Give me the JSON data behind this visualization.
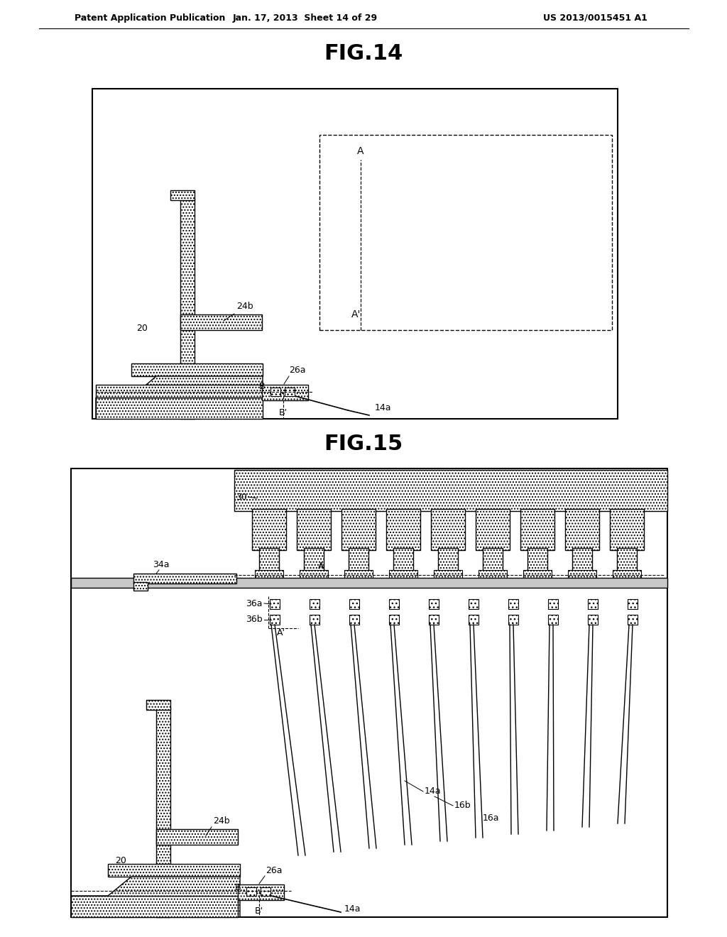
{
  "page_header_left": "Patent Application Publication",
  "page_header_mid": "Jan. 17, 2013  Sheet 14 of 29",
  "page_header_right": "US 2013/0015451 A1",
  "fig14_title": "FIG.14",
  "fig15_title": "FIG.15",
  "bg_color": "#ffffff"
}
